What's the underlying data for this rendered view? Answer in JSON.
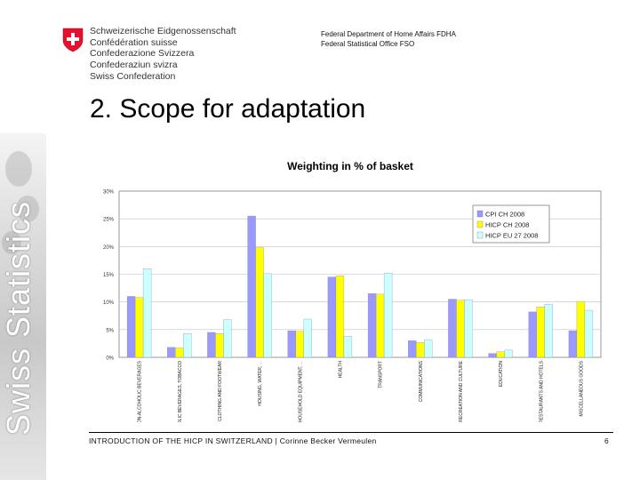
{
  "header": {
    "confederation_lines": [
      "Schweizerische Eidgenossenschaft",
      "Confédération suisse",
      "Confederazione Svizzera",
      "Confederaziun svizra"
    ],
    "confederation_english": "Swiss Confederation",
    "department_line1": "Federal Department of Home Affairs FDHA",
    "department_line2": "Federal Statistical Office FSO"
  },
  "sidebar": {
    "brand_text": "Swiss Statistics"
  },
  "slide": {
    "title": "2. Scope for adaptation"
  },
  "footer": {
    "text": "INTRODUCTION OF THE HICP IN SWITZERLAND | Corinne Becker Vermeulen",
    "page_number": "6"
  },
  "colors": {
    "cpi": "#9999ff",
    "hicp_ch": "#ffff00",
    "hicp_eu": "#ccffff",
    "plot_bg": "#ffffff",
    "grid": "#c0c0c0"
  },
  "chart_data": {
    "type": "bar",
    "title": "Weighting in % of basket",
    "ylim": [
      0,
      30
    ],
    "y_ticks": [
      "0%",
      "5%",
      "10%",
      "15%",
      "20%",
      "25%",
      "30%"
    ],
    "categories": [
      "FOOD AND NON-ALCOHOLIC BEVERAGES",
      "ALCOHOLIC BEVERAGES, TOBACCO",
      "CLOTHING AND FOOTWEAR",
      "HOUSING, WATER, ...",
      "FURNISHINGS, HOUSEHOLD EQUIPMENT, ...",
      "HEALTH",
      "TRANSPORT",
      "COMMUNICATIONS",
      "RECREATION AND CULTURE",
      "EDUCATION",
      "RESTAURANTS AND HOTELS",
      "MISCELLANEOUS GOODS"
    ],
    "series": [
      {
        "name": "CPI CH 2008",
        "color": "#9999ff",
        "values": [
          11.0,
          1.8,
          4.5,
          25.5,
          4.8,
          14.5,
          11.5,
          3.0,
          10.5,
          0.7,
          8.2,
          4.8
        ]
      },
      {
        "name": "HICP CH 2008",
        "color": "#ffff00",
        "values": [
          10.8,
          1.7,
          4.3,
          19.8,
          4.7,
          14.7,
          11.4,
          2.7,
          10.3,
          1.0,
          9.1,
          10.1
        ]
      },
      {
        "name": "HICP EU 27 2008",
        "color": "#ccffff",
        "values": [
          16.0,
          4.3,
          6.8,
          15.1,
          6.9,
          3.8,
          15.2,
          3.2,
          10.4,
          1.3,
          9.6,
          8.5
        ]
      }
    ],
    "legend_position": "top-right",
    "grid": true
  }
}
